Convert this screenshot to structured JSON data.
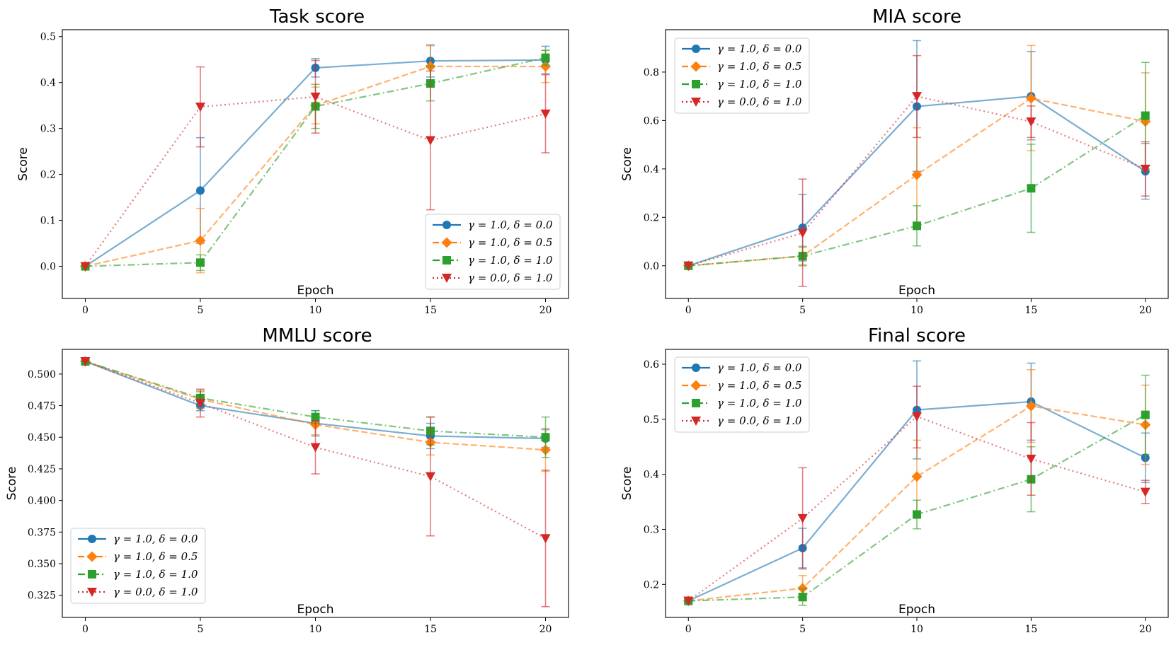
{
  "colors": {
    "blue": "#1f77b4",
    "orange": "#ff7f0e",
    "green": "#2ca02c",
    "red": "#d62728"
  },
  "legend_labels": [
    "γ = 1.0, δ = 0.0",
    "γ = 1.0, δ = 0.5",
    "γ = 1.0, δ = 1.0",
    "γ = 0.0, δ = 1.0"
  ],
  "chart_data": [
    {
      "type": "line",
      "title": "Task score",
      "xlabel": "Epoch",
      "ylabel": "Score",
      "x": [
        0,
        5,
        10,
        15,
        20
      ],
      "xticks": [
        "0",
        "5",
        "10",
        "15",
        "20"
      ],
      "yticks": [
        "0.0",
        "0.1",
        "0.2",
        "0.3",
        "0.4",
        "0.5"
      ],
      "ytick_values": [
        0.0,
        0.1,
        0.2,
        0.3,
        0.4,
        0.5
      ],
      "xlim": [
        -1.0,
        21.0
      ],
      "ylim": [
        -0.07,
        0.515
      ],
      "legend_location": "lower-right",
      "series": [
        {
          "name": "γ = 1.0, δ = 0.0",
          "color": "blue",
          "style": "solid",
          "marker": "circle",
          "values": [
            0.0,
            0.165,
            0.432,
            0.447,
            0.449
          ],
          "err_low": [
            0.0,
            0.05,
            0.412,
            0.412,
            0.419
          ],
          "err_high": [
            0.0,
            0.28,
            0.452,
            0.482,
            0.479
          ]
        },
        {
          "name": "γ = 1.0, δ = 0.5",
          "color": "orange",
          "style": "dashed",
          "marker": "diamond",
          "values": [
            0.0,
            0.056,
            0.35,
            0.435,
            0.435
          ],
          "err_low": [
            0.0,
            -0.014,
            0.31,
            0.39,
            0.4
          ],
          "err_high": [
            0.0,
            0.126,
            0.39,
            0.48,
            0.47
          ]
        },
        {
          "name": "γ = 1.0, δ = 1.0",
          "color": "green",
          "style": "dashdot",
          "marker": "square",
          "values": [
            0.0,
            0.008,
            0.348,
            0.398,
            0.454
          ],
          "err_low": [
            0.0,
            -0.009,
            0.3,
            0.36,
            0.438
          ],
          "err_high": [
            0.0,
            0.025,
            0.396,
            0.436,
            0.47
          ]
        },
        {
          "name": "γ = 0.0, δ = 1.0",
          "color": "red",
          "style": "dotted",
          "marker": "triangle-down",
          "values": [
            0.0,
            0.347,
            0.369,
            0.274,
            0.332
          ],
          "err_low": [
            0.0,
            0.26,
            0.29,
            0.123,
            0.247
          ],
          "err_high": [
            0.0,
            0.434,
            0.448,
            0.425,
            0.417
          ]
        }
      ]
    },
    {
      "type": "line",
      "title": "MIA score",
      "xlabel": "Epoch",
      "ylabel": "Score",
      "x": [
        0,
        5,
        10,
        15,
        20
      ],
      "xticks": [
        "0",
        "5",
        "10",
        "15",
        "20"
      ],
      "yticks": [
        "0.0",
        "0.2",
        "0.4",
        "0.6",
        "0.8"
      ],
      "ytick_values": [
        0.0,
        0.2,
        0.4,
        0.6,
        0.8
      ],
      "xlim": [
        -1.0,
        21.0
      ],
      "ylim": [
        -0.135,
        0.975
      ],
      "legend_location": "upper-left",
      "series": [
        {
          "name": "γ = 1.0, δ = 0.0",
          "color": "blue",
          "style": "solid",
          "marker": "circle",
          "values": [
            0.0,
            0.157,
            0.658,
            0.7,
            0.39
          ],
          "err_low": [
            0.0,
            0.02,
            0.39,
            0.52,
            0.275
          ],
          "err_high": [
            0.0,
            0.295,
            0.93,
            0.885,
            0.505
          ]
        },
        {
          "name": "γ = 1.0, δ = 0.5",
          "color": "orange",
          "style": "dashed",
          "marker": "diamond",
          "values": [
            0.0,
            0.04,
            0.376,
            0.692,
            0.596
          ],
          "err_low": [
            0.0,
            0.005,
            0.18,
            0.475,
            0.395
          ],
          "err_high": [
            0.0,
            0.075,
            0.57,
            0.91,
            0.797
          ]
        },
        {
          "name": "γ = 1.0, δ = 1.0",
          "color": "green",
          "style": "dashdot",
          "marker": "square",
          "values": [
            0.0,
            0.04,
            0.165,
            0.32,
            0.62
          ],
          "err_low": [
            0.0,
            0.0,
            0.082,
            0.138,
            0.4
          ],
          "err_high": [
            0.0,
            0.08,
            0.248,
            0.502,
            0.84
          ]
        },
        {
          "name": "γ = 0.0, δ = 1.0",
          "color": "red",
          "style": "dotted",
          "marker": "triangle-down",
          "values": [
            0.0,
            0.135,
            0.7,
            0.595,
            0.4
          ],
          "err_low": [
            0.0,
            -0.085,
            0.53,
            0.53,
            0.288
          ],
          "err_high": [
            0.0,
            0.358,
            0.868,
            0.66,
            0.512
          ]
        }
      ]
    },
    {
      "type": "line",
      "title": "MMLU score",
      "xlabel": "Epoch",
      "ylabel": "Score",
      "x": [
        0,
        5,
        10,
        15,
        20
      ],
      "xticks": [
        "0",
        "5",
        "10",
        "15",
        "20"
      ],
      "yticks": [
        "0.325",
        "0.350",
        "0.375",
        "0.400",
        "0.425",
        "0.450",
        "0.475",
        "0.500"
      ],
      "ytick_values": [
        0.325,
        0.35,
        0.375,
        0.4,
        0.425,
        0.45,
        0.475,
        0.5
      ],
      "xlim": [
        -1.0,
        21.0
      ],
      "ylim": [
        0.3075,
        0.5195
      ],
      "legend_location": "lower-left",
      "series": [
        {
          "name": "γ = 1.0, δ = 0.0",
          "color": "blue",
          "style": "solid",
          "marker": "circle",
          "values": [
            0.51,
            0.475,
            0.461,
            0.451,
            0.449
          ],
          "err_low": [
            0.51,
            0.471,
            0.451,
            0.441,
            0.442
          ],
          "err_high": [
            0.51,
            0.479,
            0.471,
            0.461,
            0.456
          ]
        },
        {
          "name": "γ = 1.0, δ = 0.5",
          "color": "orange",
          "style": "dashed",
          "marker": "diamond",
          "values": [
            0.51,
            0.48,
            0.46,
            0.446,
            0.44
          ],
          "err_low": [
            0.51,
            0.473,
            0.452,
            0.436,
            0.423
          ],
          "err_high": [
            0.51,
            0.487,
            0.468,
            0.456,
            0.457
          ]
        },
        {
          "name": "γ = 1.0, δ = 1.0",
          "color": "green",
          "style": "dashdot",
          "marker": "square",
          "values": [
            0.51,
            0.481,
            0.466,
            0.455,
            0.45
          ],
          "err_low": [
            0.51,
            0.476,
            0.461,
            0.444,
            0.434
          ],
          "err_high": [
            0.51,
            0.486,
            0.471,
            0.466,
            0.466
          ]
        },
        {
          "name": "γ = 0.0, δ = 1.0",
          "color": "red",
          "style": "dotted",
          "marker": "triangle-down",
          "values": [
            0.51,
            0.477,
            0.442,
            0.419,
            0.37
          ],
          "err_low": [
            0.51,
            0.466,
            0.421,
            0.372,
            0.316
          ],
          "err_high": [
            0.51,
            0.488,
            0.463,
            0.466,
            0.424
          ]
        }
      ]
    },
    {
      "type": "line",
      "title": "Final score",
      "xlabel": "Epoch",
      "ylabel": "Score",
      "x": [
        0,
        5,
        10,
        15,
        20
      ],
      "xticks": [
        "0",
        "5",
        "10",
        "15",
        "20"
      ],
      "yticks": [
        "0.2",
        "0.3",
        "0.4",
        "0.5",
        "0.6"
      ],
      "ytick_values": [
        0.2,
        0.3,
        0.4,
        0.5,
        0.6
      ],
      "xlim": [
        -1.0,
        21.0
      ],
      "ylim": [
        0.14,
        0.627
      ],
      "legend_location": "upper-left",
      "series": [
        {
          "name": "γ = 1.0, δ = 0.0",
          "color": "blue",
          "style": "solid",
          "marker": "circle",
          "values": [
            0.17,
            0.266,
            0.517,
            0.532,
            0.43
          ],
          "err_low": [
            0.17,
            0.23,
            0.428,
            0.462,
            0.385
          ],
          "err_high": [
            0.17,
            0.302,
            0.606,
            0.602,
            0.475
          ]
        },
        {
          "name": "γ = 1.0, δ = 0.5",
          "color": "orange",
          "style": "dashed",
          "marker": "diamond",
          "values": [
            0.17,
            0.193,
            0.396,
            0.524,
            0.49
          ],
          "err_low": [
            0.17,
            0.17,
            0.33,
            0.458,
            0.418
          ],
          "err_high": [
            0.17,
            0.216,
            0.462,
            0.59,
            0.562
          ]
        },
        {
          "name": "γ = 1.0, δ = 1.0",
          "color": "green",
          "style": "dashdot",
          "marker": "square",
          "values": [
            0.17,
            0.177,
            0.327,
            0.391,
            0.508
          ],
          "err_low": [
            0.17,
            0.162,
            0.301,
            0.332,
            0.436
          ],
          "err_high": [
            0.17,
            0.192,
            0.353,
            0.45,
            0.58
          ]
        },
        {
          "name": "γ = 0.0, δ = 1.0",
          "color": "red",
          "style": "dotted",
          "marker": "triangle-down",
          "values": [
            0.17,
            0.32,
            0.505,
            0.428,
            0.368
          ],
          "err_low": [
            0.17,
            0.228,
            0.448,
            0.362,
            0.347
          ],
          "err_high": [
            0.17,
            0.412,
            0.56,
            0.494,
            0.389
          ]
        }
      ]
    }
  ]
}
